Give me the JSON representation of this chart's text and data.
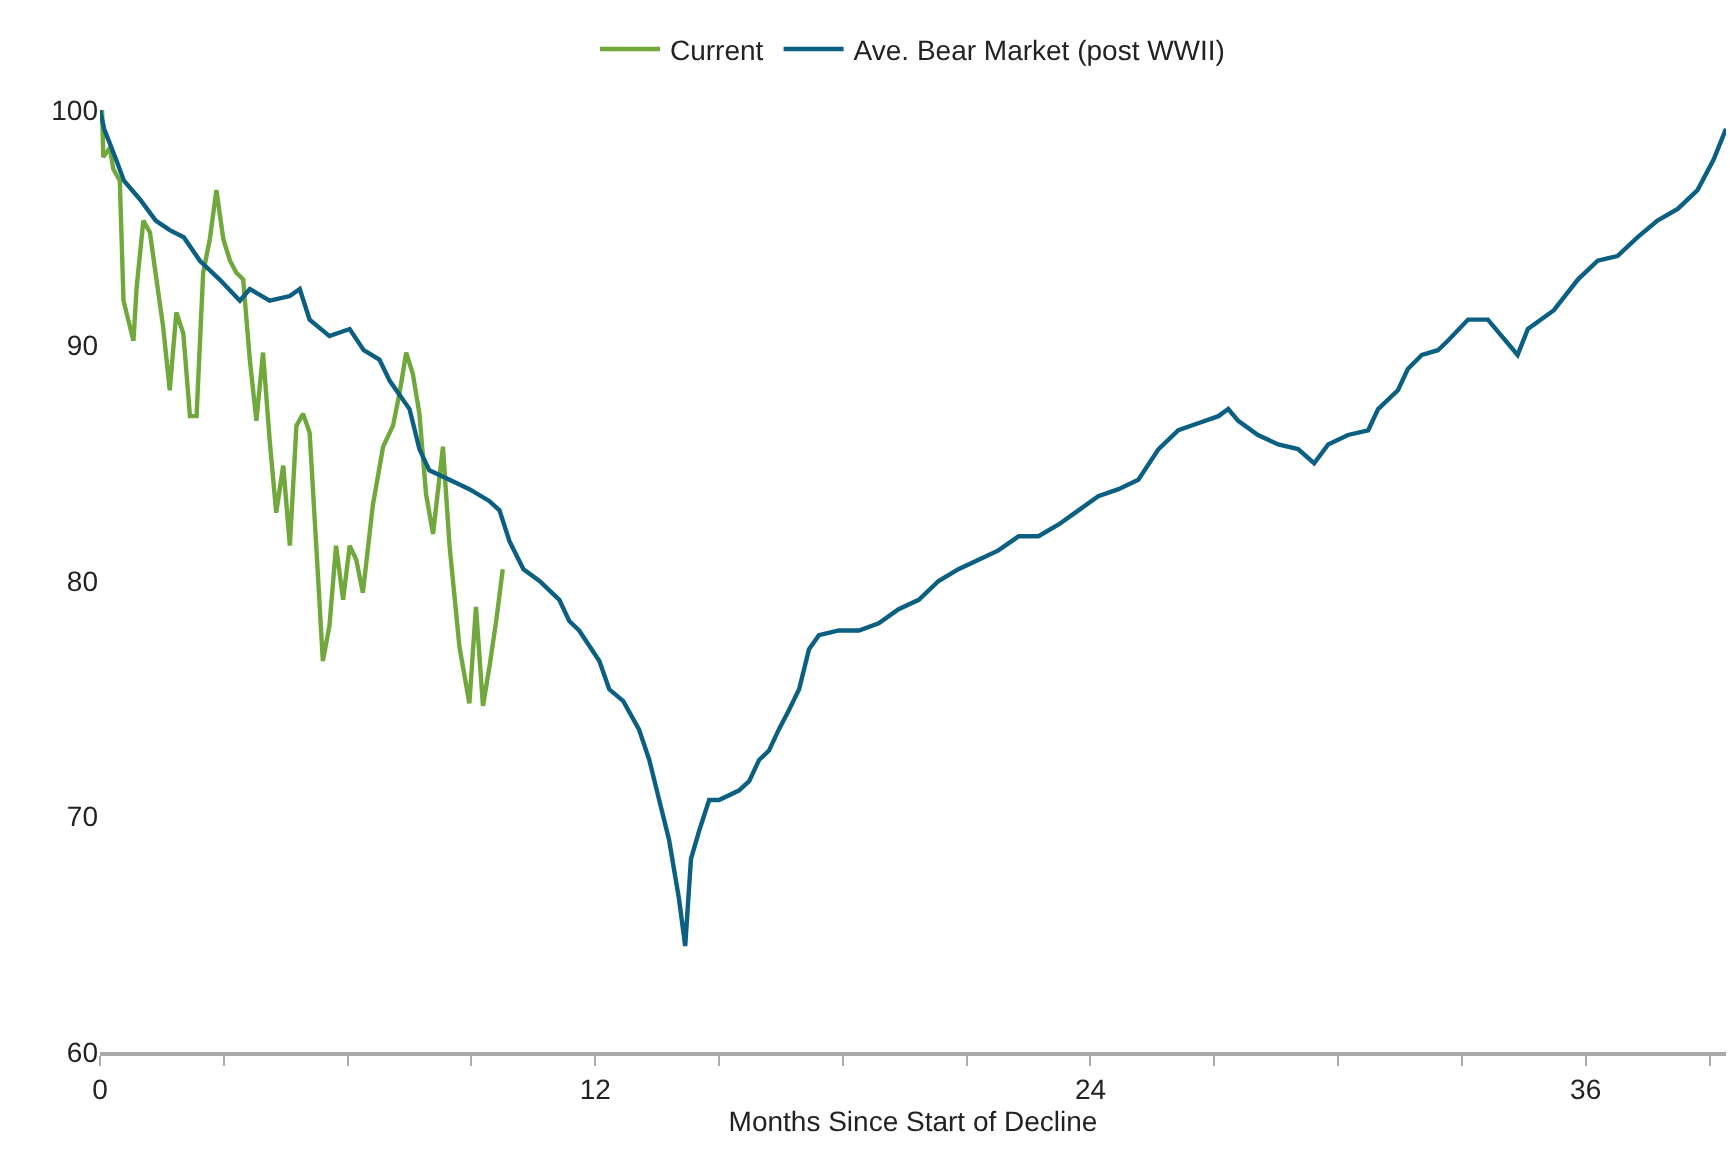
{
  "chart_data": {
    "type": "line",
    "xlabel": "Months Since Start of Decline",
    "legend": "top",
    "line_style": "solid",
    "marker": "none",
    "xlim": [
      0,
      39.4
    ],
    "ylim": [
      60,
      100
    ],
    "xticks": [
      0,
      {
        "value": 3,
        "label": null
      },
      {
        "value": 6,
        "label": null
      },
      {
        "value": 9,
        "label": null
      },
      12,
      {
        "value": 15,
        "label": null
      },
      {
        "value": 18,
        "label": null
      },
      {
        "value": 21,
        "label": null
      },
      24,
      {
        "value": 27,
        "label": null
      },
      {
        "value": 30,
        "label": null
      },
      {
        "value": 33,
        "label": null
      },
      36,
      {
        "value": 39,
        "label": null
      }
    ],
    "yticks": [
      60,
      70,
      80,
      90,
      100
    ],
    "series": [
      {
        "name": "Current",
        "color": "#70a83b",
        "x": [
          0.05,
          0.08,
          0.24,
          0.32,
          0.48,
          0.57,
          0.81,
          0.89,
          1.05,
          1.21,
          1.32,
          1.53,
          1.69,
          1.85,
          2.02,
          2.18,
          2.34,
          2.5,
          2.66,
          2.82,
          2.99,
          3.15,
          3.3,
          3.47,
          3.63,
          3.79,
          3.95,
          4.11,
          4.27,
          4.44,
          4.6,
          4.76,
          4.92,
          5.08,
          5.24,
          5.4,
          5.56,
          5.72,
          5.89,
          6.05,
          6.21,
          6.37,
          6.61,
          6.86,
          7.1,
          7.26,
          7.42,
          7.58,
          7.74,
          7.9,
          8.07,
          8.31,
          8.47,
          8.71,
          8.95,
          9.11,
          9.28,
          9.44,
          9.6,
          9.76
        ],
        "values": [
          100,
          98.0,
          98.4,
          97.5,
          97.0,
          91.9,
          90.2,
          92.5,
          95.3,
          94.8,
          93.4,
          90.8,
          88.1,
          91.4,
          90.5,
          87.0,
          87.0,
          93.1,
          94.5,
          96.6,
          94.5,
          93.6,
          93.1,
          92.8,
          89.4,
          86.8,
          89.7,
          86.0,
          82.9,
          84.9,
          81.5,
          86.6,
          87.1,
          86.3,
          81.5,
          76.6,
          78.1,
          81.5,
          79.2,
          81.5,
          80.9,
          79.5,
          83.2,
          85.7,
          86.6,
          88.0,
          89.7,
          88.8,
          87.1,
          83.7,
          82.0,
          85.7,
          81.5,
          77.2,
          74.8,
          78.9,
          74.7,
          76.4,
          78.3,
          80.5
        ]
      },
      {
        "name": "Ave. Bear Market (post WWII)",
        "color": "#0b5f80",
        "x": [
          0,
          0.1,
          0.39,
          0.58,
          0.97,
          1.35,
          1.69,
          2.03,
          2.42,
          2.9,
          3.39,
          3.63,
          4.11,
          4.6,
          4.84,
          5.08,
          5.56,
          6.05,
          6.39,
          6.77,
          7.02,
          7.5,
          7.74,
          7.98,
          8.47,
          8.95,
          9.43,
          9.68,
          9.92,
          10.26,
          10.65,
          11.13,
          11.37,
          11.61,
          12.1,
          12.34,
          12.68,
          13.06,
          13.31,
          13.55,
          13.79,
          14.03,
          14.18,
          14.32,
          14.52,
          14.76,
          15.0,
          15.48,
          15.73,
          15.97,
          16.21,
          16.45,
          16.69,
          16.94,
          17.18,
          17.42,
          17.9,
          18.39,
          18.87,
          19.35,
          19.84,
          20.32,
          20.8,
          21.29,
          21.77,
          22.26,
          22.74,
          23.23,
          23.71,
          24.19,
          24.68,
          25.16,
          25.65,
          26.13,
          26.61,
          27.1,
          27.34,
          27.58,
          28.06,
          28.55,
          29.03,
          29.42,
          29.76,
          30.24,
          30.73,
          30.97,
          31.45,
          31.69,
          32.03,
          32.42,
          32.66,
          33.15,
          33.63,
          34.35,
          34.6,
          35.23,
          35.81,
          36.29,
          36.77,
          37.26,
          37.74,
          38.23,
          38.71,
          39.1,
          39.4
        ],
        "values": [
          100,
          99.2,
          97.9,
          97.0,
          96.2,
          95.3,
          94.9,
          94.6,
          93.6,
          92.8,
          91.9,
          92.4,
          91.9,
          92.1,
          92.4,
          91.1,
          90.4,
          90.7,
          89.8,
          89.4,
          88.5,
          87.3,
          85.6,
          84.7,
          84.3,
          83.9,
          83.4,
          83.0,
          81.7,
          80.5,
          80.0,
          79.2,
          78.3,
          77.9,
          76.6,
          75.4,
          74.9,
          73.7,
          72.4,
          70.7,
          69.0,
          66.5,
          64.5,
          68.2,
          69.4,
          70.7,
          70.7,
          71.1,
          71.5,
          72.4,
          72.8,
          73.7,
          74.5,
          75.4,
          77.1,
          77.7,
          77.9,
          77.9,
          78.2,
          78.8,
          79.2,
          80.0,
          80.5,
          80.9,
          81.3,
          81.9,
          81.9,
          82.4,
          83.0,
          83.6,
          83.9,
          84.3,
          85.6,
          86.4,
          86.7,
          87.0,
          87.3,
          86.8,
          86.2,
          85.8,
          85.6,
          85.0,
          85.8,
          86.2,
          86.4,
          87.3,
          88.1,
          89.0,
          89.6,
          89.8,
          90.2,
          91.1,
          91.1,
          89.6,
          90.7,
          91.5,
          92.8,
          93.6,
          93.8,
          94.6,
          95.3,
          95.8,
          96.6,
          97.9,
          99.2
        ]
      }
    ]
  }
}
